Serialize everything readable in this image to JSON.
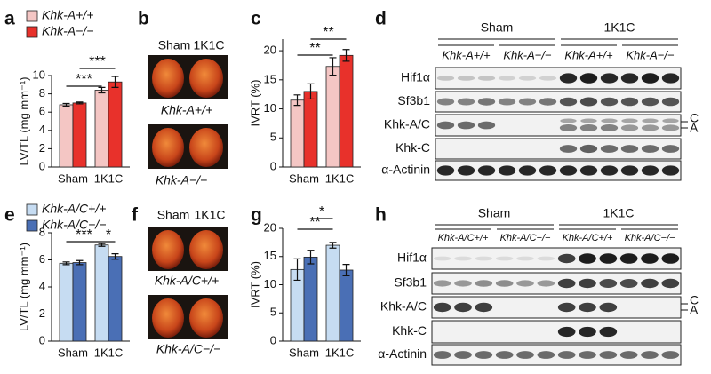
{
  "chart_data": [
    {
      "type": "bar",
      "label": "a",
      "ylabel": "LV/TL (mg mm⁻¹)",
      "categories": [
        "Sham",
        "1K1C"
      ],
      "series": [
        {
          "name": "Khk-A+/+",
          "color": "#f4c6c4",
          "values": [
            6.8,
            8.4
          ],
          "errors": [
            0.15,
            0.3
          ]
        },
        {
          "name": "Khk-A−/−",
          "color": "#e8312b",
          "values": [
            7.0,
            9.3
          ],
          "errors": [
            0.1,
            0.6
          ]
        }
      ],
      "ylim": [
        0,
        10
      ],
      "yticks": [
        0,
        2,
        4,
        6,
        8,
        10
      ],
      "annotations": [
        "***",
        "***"
      ]
    },
    {
      "type": "bar",
      "label": "c",
      "ylabel": "IVRT (%)",
      "categories": [
        "Sham",
        "1K1C"
      ],
      "series": [
        {
          "color": "#f4c6c4",
          "values": [
            11.5,
            17.3
          ],
          "errors": [
            0.9,
            1.5
          ]
        },
        {
          "color": "#e8312b",
          "values": [
            13.0,
            19.2
          ],
          "errors": [
            1.3,
            1.0
          ]
        }
      ],
      "ylim": [
        0,
        22
      ],
      "yticks": [
        0,
        5,
        10,
        15,
        20
      ],
      "annotations": [
        "**",
        "**"
      ]
    },
    {
      "type": "bar",
      "label": "e",
      "ylabel": "LV/TL (mg mm⁻¹)",
      "categories": [
        "Sham",
        "1K1C"
      ],
      "series": [
        {
          "name": "Khk-A/C+/+",
          "color": "#c6dcf2",
          "values": [
            5.75,
            7.1
          ],
          "errors": [
            0.1,
            0.1
          ]
        },
        {
          "name": "Khk-A/C−/−",
          "color": "#4a6fb5",
          "values": [
            5.8,
            6.25
          ],
          "errors": [
            0.15,
            0.2
          ]
        }
      ],
      "ylim": [
        0,
        8
      ],
      "yticks": [
        0,
        2,
        4,
        6,
        8
      ],
      "annotations": [
        "***",
        "*"
      ]
    },
    {
      "type": "bar",
      "label": "g",
      "ylabel": "IVRT (%)",
      "categories": [
        "Sham",
        "1K1C"
      ],
      "series": [
        {
          "color": "#c6dcf2",
          "values": [
            12.7,
            17.0
          ],
          "errors": [
            1.9,
            0.5
          ]
        },
        {
          "color": "#4a6fb5",
          "values": [
            14.9,
            12.6
          ],
          "errors": [
            1.2,
            1.0
          ]
        }
      ],
      "ylim": [
        0,
        20
      ],
      "yticks": [
        0,
        5,
        10,
        15,
        20
      ],
      "annotations": [
        "*",
        "**"
      ]
    }
  ],
  "photo_panels": [
    {
      "label": "b",
      "headers": [
        "Sham",
        "1K1C"
      ],
      "captions": [
        "Khk-A+/+",
        "Khk-A−/−"
      ]
    },
    {
      "label": "f",
      "headers": [
        "Sham",
        "1K1C"
      ],
      "captions": [
        "Khk-A/C+/+",
        "Khk-A/C−/−"
      ]
    }
  ],
  "blot_panels": [
    {
      "label": "d",
      "groups": [
        "Sham",
        "1K1C"
      ],
      "genotypes": [
        "Khk-A+/+",
        "Khk-A−/−",
        "Khk-A+/+",
        "Khk-A−/−"
      ],
      "rows": [
        "Hif1α",
        "Sf3b1",
        "Khk-A/C",
        "Khk-C",
        "α-Actinin"
      ],
      "isoforms": [
        "C",
        "A"
      ]
    },
    {
      "label": "h",
      "groups": [
        "Sham",
        "1K1C"
      ],
      "genotypes": [
        "Khk-A/C+/+",
        "Khk-A/C−/−",
        "Khk-A/C+/+",
        "Khk-A/C−/−"
      ],
      "rows": [
        "Hif1α",
        "Sf3b1",
        "Khk-A/C",
        "Khk-C",
        "α-Actinin"
      ],
      "isoforms": [
        "C",
        "A"
      ]
    }
  ]
}
